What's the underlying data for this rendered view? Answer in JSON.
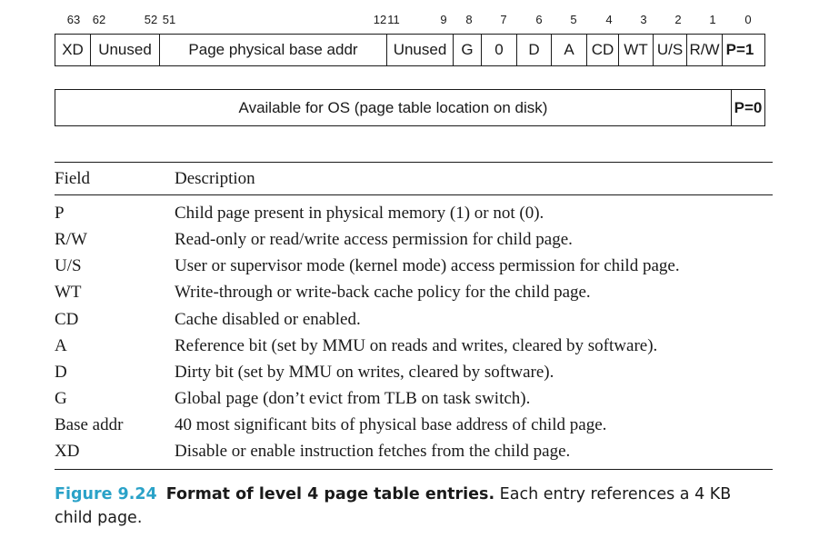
{
  "bit_numbers": [
    "63",
    "62",
    "52",
    "51",
    "12",
    "11",
    "9",
    "8",
    "7",
    "6",
    "5",
    "4",
    "3",
    "2",
    "1",
    "0"
  ],
  "entry_present": {
    "cells": [
      "XD",
      "Unused",
      "Page physical base addr",
      "Unused",
      "G",
      "0",
      "D",
      "A",
      "CD",
      "WT",
      "U/S",
      "R/W",
      "P=1"
    ]
  },
  "entry_absent": {
    "available": "Available for OS (page table location on disk)",
    "present": "P=0"
  },
  "table": {
    "header": {
      "field": "Field",
      "description": "Description"
    },
    "rows": [
      {
        "field": "P",
        "description": "Child page present in physical memory (1) or not (0)."
      },
      {
        "field": "R/W",
        "description": "Read-only or read/write access permission for child page."
      },
      {
        "field": "U/S",
        "description": "User or supervisor mode (kernel mode) access permission for child page."
      },
      {
        "field": "WT",
        "description": "Write-through or write-back cache policy for the child page."
      },
      {
        "field": "CD",
        "description": "Cache disabled or enabled."
      },
      {
        "field": "A",
        "description": "Reference bit (set by MMU on reads and writes, cleared by software)."
      },
      {
        "field": "D",
        "description": "Dirty bit (set by MMU on writes, cleared by software)."
      },
      {
        "field": "G",
        "description": "Global page (don’t evict from TLB on task switch)."
      },
      {
        "field": "Base addr",
        "description": "40 most significant bits of physical base address of child page."
      },
      {
        "field": "XD",
        "description": "Disable or enable instruction fetches from the child page."
      }
    ]
  },
  "caption": {
    "number": "Figure 9.24",
    "title": "Format of level 4 page table entries.",
    "text": "Each entry references a 4 KB child page."
  }
}
